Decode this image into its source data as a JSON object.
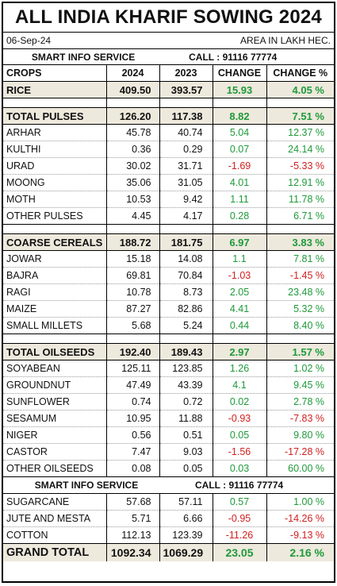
{
  "title": "ALL INDIA KHARIF SOWING 2024",
  "date": "06-Sep-24",
  "unit_note": "AREA IN LAKH HEC.",
  "service": "SMART INFO SERVICE",
  "call": "CALL : 91116 77774",
  "headers": [
    "CROPS",
    "2024",
    "2023",
    "CHANGE",
    "CHANGE %"
  ],
  "rice": {
    "name": "RICE",
    "y2024": "409.50",
    "y2023": "393.57",
    "change": "15.93",
    "pct": "4.05 %"
  },
  "pulses": {
    "total": {
      "name": "TOTAL PULSES",
      "y2024": "126.20",
      "y2023": "117.38",
      "change": "8.82",
      "pct": "7.51 %"
    },
    "rows": [
      {
        "name": "ARHAR",
        "y2024": "45.78",
        "y2023": "40.74",
        "change": "5.04",
        "pct": "12.37 %"
      },
      {
        "name": "KULTHI",
        "y2024": "0.36",
        "y2023": "0.29",
        "change": "0.07",
        "pct": "24.14 %"
      },
      {
        "name": "URAD",
        "y2024": "30.02",
        "y2023": "31.71",
        "change": "-1.69",
        "pct": "-5.33 %"
      },
      {
        "name": "MOONG",
        "y2024": "35.06",
        "y2023": "31.05",
        "change": "4.01",
        "pct": "12.91 %"
      },
      {
        "name": "MOTH",
        "y2024": "10.53",
        "y2023": "9.42",
        "change": "1.11",
        "pct": "11.78 %"
      },
      {
        "name": "OTHER PULSES",
        "y2024": "4.45",
        "y2023": "4.17",
        "change": "0.28",
        "pct": "6.71 %"
      }
    ]
  },
  "cereals": {
    "total": {
      "name": "COARSE CEREALS",
      "y2024": "188.72",
      "y2023": "181.75",
      "change": "6.97",
      "pct": "3.83 %"
    },
    "rows": [
      {
        "name": "JOWAR",
        "y2024": "15.18",
        "y2023": "14.08",
        "change": "1.1",
        "pct": "7.81 %"
      },
      {
        "name": "BAJRA",
        "y2024": "69.81",
        "y2023": "70.84",
        "change": "-1.03",
        "pct": "-1.45 %"
      },
      {
        "name": "RAGI",
        "y2024": "10.78",
        "y2023": "8.73",
        "change": "2.05",
        "pct": "23.48 %"
      },
      {
        "name": "MAIZE",
        "y2024": "87.27",
        "y2023": "82.86",
        "change": "4.41",
        "pct": "5.32 %"
      },
      {
        "name": "SMALL MILLETS",
        "y2024": "5.68",
        "y2023": "5.24",
        "change": "0.44",
        "pct": "8.40 %"
      }
    ]
  },
  "oilseeds": {
    "total": {
      "name": "TOTAL OILSEEDS",
      "y2024": "192.40",
      "y2023": "189.43",
      "change": "2.97",
      "pct": "1.57 %"
    },
    "rows": [
      {
        "name": "SOYABEAN",
        "y2024": "125.11",
        "y2023": "123.85",
        "change": "1.26",
        "pct": "1.02 %"
      },
      {
        "name": "GROUNDNUT",
        "y2024": "47.49",
        "y2023": "43.39",
        "change": "4.1",
        "pct": "9.45 %"
      },
      {
        "name": "SUNFLOWER",
        "y2024": "0.74",
        "y2023": "0.72",
        "change": "0.02",
        "pct": "2.78 %"
      },
      {
        "name": "SESAMUM",
        "y2024": "10.95",
        "y2023": "11.88",
        "change": "-0.93",
        "pct": "-7.83 %"
      },
      {
        "name": "NIGER",
        "y2024": "0.56",
        "y2023": "0.51",
        "change": "0.05",
        "pct": "9.80 %"
      },
      {
        "name": "CASTOR",
        "y2024": "7.47",
        "y2023": "9.03",
        "change": "-1.56",
        "pct": "-17.28 %"
      },
      {
        "name": "OTHER OILSEEDS",
        "y2024": "0.08",
        "y2023": "0.05",
        "change": "0.03",
        "pct": "60.00 %"
      }
    ]
  },
  "others": [
    {
      "name": "SUGARCANE",
      "y2024": "57.68",
      "y2023": "57.11",
      "change": "0.57",
      "pct": "1.00 %"
    },
    {
      "name": "JUTE AND MESTA",
      "y2024": "5.71",
      "y2023": "6.66",
      "change": "-0.95",
      "pct": "-14.26 %"
    },
    {
      "name": "COTTON",
      "y2024": "112.13",
      "y2023": "123.39",
      "change": "-11.26",
      "pct": "-9.13 %"
    }
  ],
  "grand_total": {
    "name": "GRAND TOTAL",
    "y2024": "1092.34",
    "y2023": "1069.29",
    "change": "23.05",
    "pct": "2.16 %"
  },
  "colors": {
    "positive": "#1e9a3a",
    "negative": "#d11f1f",
    "group_bg": "#eee9dd"
  }
}
